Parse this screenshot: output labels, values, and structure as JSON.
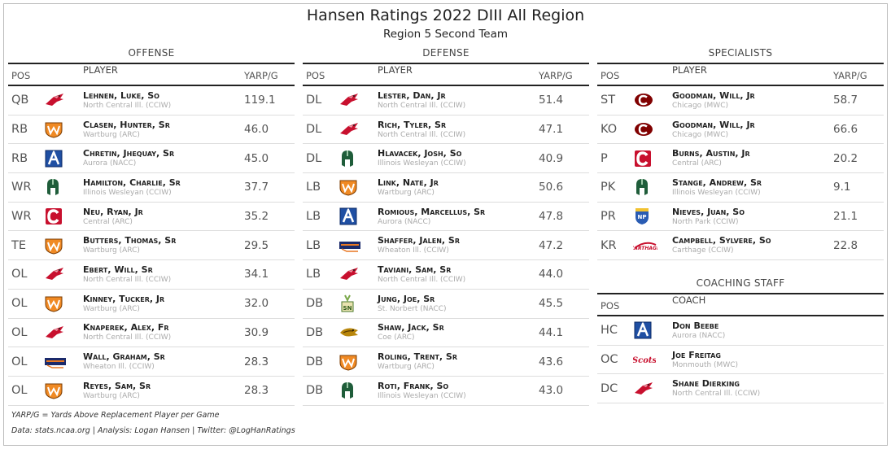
{
  "title": "Hansen Ratings 2022 DIII All Region",
  "subtitle": "Region 5 Second Team",
  "headers": {
    "pos": "POS",
    "player": "PLAYER",
    "yarp": "YARP/G",
    "coach": "COACH"
  },
  "offense": {
    "title": "OFFENSE",
    "rows": [
      {
        "pos": "QB",
        "name": "Lehnen, Luke, So",
        "team": "North Central Ill. (CCIW)",
        "yarp": "119.1",
        "logo": "cardinal-icon"
      },
      {
        "pos": "RB",
        "name": "Clasen, Hunter, Sr",
        "team": "Wartburg (ARC)",
        "yarp": "46.0",
        "logo": "wartburg-w-icon"
      },
      {
        "pos": "RB",
        "name": "Chretin, Jhequay, Sr",
        "team": "Aurora (NACC)",
        "yarp": "45.0",
        "logo": "aurora-a-icon"
      },
      {
        "pos": "WR",
        "name": "Hamilton, Charlie, Sr",
        "team": "Illinois Wesleyan (CCIW)",
        "yarp": "37.7",
        "logo": "titan-helmet-icon"
      },
      {
        "pos": "WR",
        "name": "Neu, Ryan, Jr",
        "team": "Central (ARC)",
        "yarp": "35.2",
        "logo": "central-c-icon"
      },
      {
        "pos": "TE",
        "name": "Butters, Thomas, Sr",
        "team": "Wartburg (ARC)",
        "yarp": "29.5",
        "logo": "wartburg-w-icon"
      },
      {
        "pos": "OL",
        "name": "Ebert, Will, Sr",
        "team": "North Central Ill. (CCIW)",
        "yarp": "34.1",
        "logo": "cardinal-icon"
      },
      {
        "pos": "OL",
        "name": "Kinney, Tucker, Jr",
        "team": "Wartburg (ARC)",
        "yarp": "32.0",
        "logo": "wartburg-w-icon"
      },
      {
        "pos": "OL",
        "name": "Knaperek, Alex, Fr",
        "team": "North Central Ill. (CCIW)",
        "yarp": "30.9",
        "logo": "cardinal-icon"
      },
      {
        "pos": "OL",
        "name": "Wall, Graham, Sr",
        "team": "Wheaton Ill. (CCIW)",
        "yarp": "28.3",
        "logo": "wheaton-thunder-icon"
      },
      {
        "pos": "OL",
        "name": "Reyes, Sam, Sr",
        "team": "Wartburg (ARC)",
        "yarp": "28.3",
        "logo": "wartburg-w-icon"
      }
    ]
  },
  "defense": {
    "title": "DEFENSE",
    "rows": [
      {
        "pos": "DL",
        "name": "Lester, Dan, Jr",
        "team": "North Central Ill. (CCIW)",
        "yarp": "51.4",
        "logo": "cardinal-icon"
      },
      {
        "pos": "DL",
        "name": "Rich, Tyler, Sr",
        "team": "North Central Ill. (CCIW)",
        "yarp": "47.1",
        "logo": "cardinal-icon"
      },
      {
        "pos": "DL",
        "name": "Hlavacek, Josh, So",
        "team": "Illinois Wesleyan (CCIW)",
        "yarp": "40.9",
        "logo": "titan-helmet-icon"
      },
      {
        "pos": "LB",
        "name": "Link, Nate, Jr",
        "team": "Wartburg (ARC)",
        "yarp": "50.6",
        "logo": "wartburg-w-icon"
      },
      {
        "pos": "LB",
        "name": "Romious, Marcellus, Sr",
        "team": "Aurora (NACC)",
        "yarp": "47.8",
        "logo": "aurora-a-icon"
      },
      {
        "pos": "LB",
        "name": "Shaffer, Jalen, Sr",
        "team": "Wheaton Ill. (CCIW)",
        "yarp": "47.2",
        "logo": "wheaton-thunder-icon"
      },
      {
        "pos": "LB",
        "name": "Taviani, Sam, Sr",
        "team": "North Central Ill. (CCIW)",
        "yarp": "44.0",
        "logo": "cardinal-icon"
      },
      {
        "pos": "DB",
        "name": "Jung, Joe, Sr",
        "team": "St. Norbert (NACC)",
        "yarp": "45.5",
        "logo": "st-norbert-icon"
      },
      {
        "pos": "DB",
        "name": "Shaw, Jack, Sr",
        "team": "Coe (ARC)",
        "yarp": "44.1",
        "logo": "coe-kohawk-icon"
      },
      {
        "pos": "DB",
        "name": "Roling, Trent, Sr",
        "team": "Wartburg (ARC)",
        "yarp": "43.6",
        "logo": "wartburg-w-icon"
      },
      {
        "pos": "DB",
        "name": "Roti, Frank, So",
        "team": "Illinois Wesleyan (CCIW)",
        "yarp": "43.0",
        "logo": "titan-helmet-icon"
      }
    ]
  },
  "specialists": {
    "title": "SPECIALISTS",
    "rows": [
      {
        "pos": "ST",
        "name": "Goodman, Will, Jr",
        "team": "Chicago (MWC)",
        "yarp": "58.7",
        "logo": "chicago-c-icon"
      },
      {
        "pos": "KO",
        "name": "Goodman, Will, Jr",
        "team": "Chicago (MWC)",
        "yarp": "66.6",
        "logo": "chicago-c-icon"
      },
      {
        "pos": "P",
        "name": "Burns, Austin, Jr",
        "team": "Central (ARC)",
        "yarp": "20.2",
        "logo": "central-c-icon"
      },
      {
        "pos": "PK",
        "name": "Stange, Andrew, Sr",
        "team": "Illinois Wesleyan (CCIW)",
        "yarp": "9.1",
        "logo": "titan-helmet-icon"
      },
      {
        "pos": "PR",
        "name": "Nieves, Juan, So",
        "team": "North Park (CCIW)",
        "yarp": "21.1",
        "logo": "north-park-shield-icon"
      },
      {
        "pos": "KR",
        "name": "Campbell, Sylvere, So",
        "team": "Carthage (CCIW)",
        "yarp": "22.8",
        "logo": "carthage-icon"
      }
    ]
  },
  "coaching": {
    "title": "COACHING STAFF",
    "rows": [
      {
        "pos": "HC",
        "name": "Don Beebe",
        "team": "Aurora (NACC)",
        "logo": "aurora-a-icon"
      },
      {
        "pos": "OC",
        "name": "Joe Freitag",
        "team": "Monmouth (MWC)",
        "logo": "monmouth-scots-icon"
      },
      {
        "pos": "DC",
        "name": "Shane Dierking",
        "team": "North Central Ill. (CCIW)",
        "logo": "cardinal-icon"
      }
    ]
  },
  "footnote": "YARP/G = Yards Above Replacement Player per Game",
  "credits": "Data: stats.ncaa.org | Analysis: Logan Hansen | Twitter: @LogHanRatings",
  "colors": {
    "ncc_red": "#c8102e",
    "wartburg_orange": "#f08a24",
    "aurora_blue": "#1f4fa3",
    "iwu_green": "#1f5d3a",
    "central_red": "#c8102e",
    "chicago_maroon": "#800000",
    "wheaton_navy": "#1b2a6b",
    "wheaton_orange": "#e87722"
  }
}
